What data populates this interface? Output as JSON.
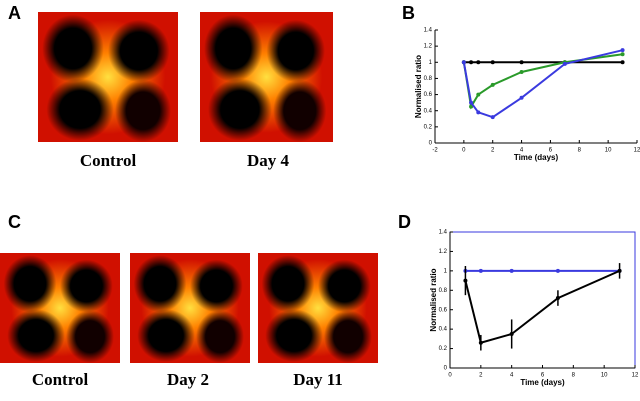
{
  "panel_labels": [
    "A",
    "B",
    "C",
    "D"
  ],
  "captions": [
    "Control",
    "Day 4",
    "Control",
    "Day 2",
    "Day 11"
  ],
  "chart_data": [
    {
      "type": "line",
      "xlabel": "Time (days)",
      "ylabel": "Normalised ratio",
      "x": [
        0,
        0.5,
        1,
        2,
        4,
        7,
        11
      ],
      "series": [
        {
          "color": "#000000",
          "values": [
            1,
            1,
            1,
            1,
            1,
            1,
            1
          ]
        },
        {
          "color": "#2a9a2a",
          "values": [
            1,
            0.45,
            0.6,
            0.72,
            0.88,
            1.0,
            1.1
          ]
        },
        {
          "color": "#3a3adf",
          "values": [
            1,
            0.5,
            0.38,
            0.32,
            0.56,
            0.98,
            1.15
          ]
        }
      ],
      "xlim": [
        -2,
        12
      ],
      "xticks": [
        -2,
        0,
        2,
        4,
        6,
        8,
        10,
        12
      ],
      "ylim": [
        0,
        1.4
      ],
      "yticks": [
        0,
        0.2,
        0.4,
        0.6,
        0.8,
        1,
        1.2,
        1.4
      ]
    },
    {
      "type": "line",
      "xlabel": "Time (days)",
      "ylabel": "Normalised ratio",
      "x": [
        1,
        2,
        4,
        7,
        11
      ],
      "series": [
        {
          "color": "#3a3adf",
          "values": [
            1,
            1,
            1,
            1,
            1
          ]
        },
        {
          "color": "#000000",
          "values": [
            0.9,
            0.26,
            0.35,
            0.72,
            1.0
          ],
          "errors": [
            0.15,
            0.08,
            0.15,
            0.08,
            0.08
          ]
        }
      ],
      "xlim": [
        0,
        12
      ],
      "xticks": [
        0,
        2,
        4,
        6,
        8,
        10,
        12
      ],
      "ylim": [
        0,
        1.4
      ],
      "yticks": [
        0,
        0.2,
        0.4,
        0.6,
        0.8,
        1,
        1.2,
        1.4
      ]
    }
  ]
}
